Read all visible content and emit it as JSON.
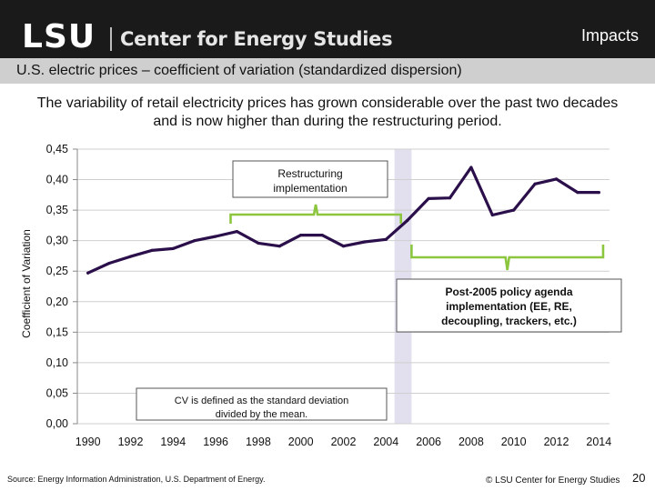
{
  "header": {
    "logo_text": "LSU",
    "center_name": "Center for Energy Studies",
    "section": "Impacts"
  },
  "subtitle": "U.S. electric prices – coefficient of variation (standardized dispersion)",
  "summary": "The variability of retail electricity prices has grown considerable over the past two decades and is now higher than during the restructuring period.",
  "chart_data": {
    "type": "line",
    "title": "",
    "xlabel": "",
    "ylabel": "Coefficient of Variation",
    "xlim": [
      1989.5,
      2014.5
    ],
    "ylim": [
      0,
      0.45
    ],
    "x_ticks": [
      "1990",
      "1992",
      "1994",
      "1996",
      "1998",
      "2000",
      "2002",
      "2004",
      "2006",
      "2008",
      "2010",
      "2012",
      "2014"
    ],
    "y_ticks": [
      "0,00",
      "0,05",
      "0,10",
      "0,15",
      "0,20",
      "0,25",
      "0,30",
      "0,35",
      "0,40",
      "0,45"
    ],
    "grid": "horizontal",
    "line_color": "#2b0f4a",
    "series": [
      {
        "x": [
          1990,
          1991,
          1992,
          1993,
          1994,
          1995,
          1996,
          1997,
          1998,
          1999,
          2000,
          2001,
          2002,
          2003,
          2004,
          2005,
          2006,
          2007,
          2008,
          2009,
          2010,
          2011,
          2012,
          2013,
          2014
        ],
        "values": [
          0.247,
          0.263,
          0.274,
          0.284,
          0.287,
          0.3,
          0.307,
          0.315,
          0.296,
          0.291,
          0.309,
          0.309,
          0.291,
          0.298,
          0.302,
          0.333,
          0.369,
          0.37,
          0.42,
          0.342,
          0.35,
          0.393,
          0.401,
          0.379,
          0.379
        ]
      }
    ],
    "highlight_band": {
      "x_from": 2004.4,
      "x_to": 2005.2,
      "color": "#e2e0ee"
    },
    "annotations": {
      "restructuring": "Restructuring implementation",
      "post2005": "Post-2005 policy agenda implementation (EE, RE, decoupling, trackers, etc.)",
      "cv_definition": "CV is defined as the standard deviation divided by the mean."
    },
    "bracket_color": "#8cc63f"
  },
  "footer": {
    "source": "Source:  Energy Information Administration, U.S. Department of Energy.",
    "copyright": "© LSU Center for Energy Studies",
    "page_number": "20"
  }
}
